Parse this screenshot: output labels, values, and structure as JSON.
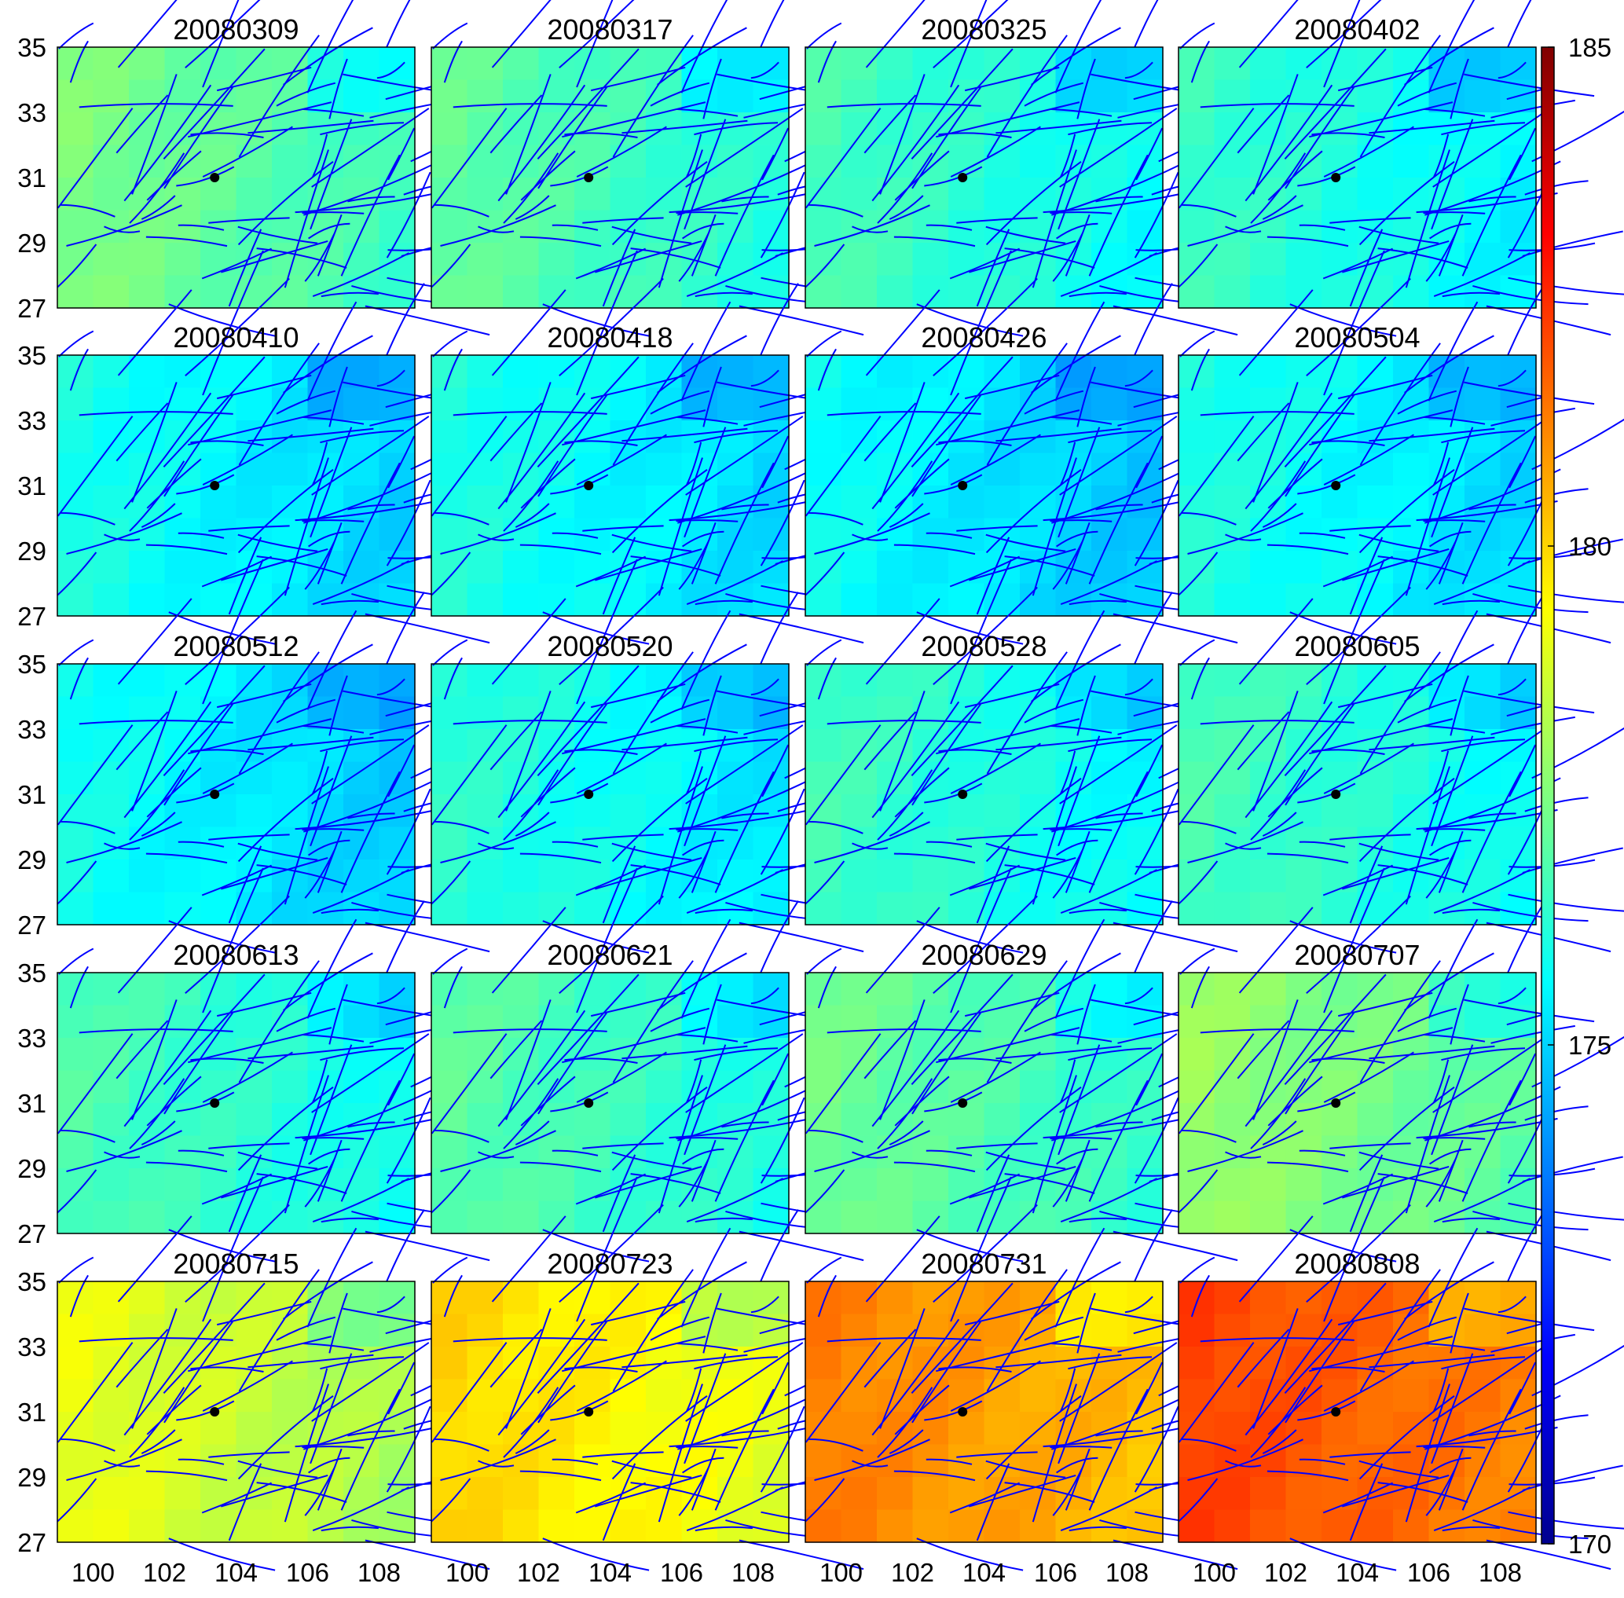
{
  "chart_data": {
    "type": "heatmap",
    "panel_titles": [
      "20080309",
      "20080317",
      "20080325",
      "20080402",
      "20080410",
      "20080418",
      "20080426",
      "20080504",
      "20080512",
      "20080520",
      "20080528",
      "20080605",
      "20080613",
      "20080621",
      "20080629",
      "20080707",
      "20080715",
      "20080723",
      "20080731",
      "20080808"
    ],
    "panel_mean_values": [
      177.0,
      176.6,
      176.2,
      176.0,
      175.5,
      175.6,
      175.3,
      175.6,
      175.4,
      175.8,
      176.1,
      176.2,
      176.3,
      176.5,
      176.8,
      177.4,
      178.6,
      179.5,
      180.8,
      181.7
    ],
    "xticks": [
      "100",
      "102",
      "104",
      "106",
      "108"
    ],
    "yticks": [
      "35",
      "33",
      "31",
      "29",
      "27"
    ],
    "xlim": [
      99,
      109
    ],
    "ylim": [
      27,
      35
    ],
    "colorbar": {
      "ticks": [
        "185",
        "180",
        "175",
        "170"
      ],
      "range": [
        170,
        185
      ],
      "colormap": "jet"
    },
    "epicenter": {
      "lon": 103.4,
      "lat": 31.0
    },
    "fault_color": "#0000ff"
  }
}
